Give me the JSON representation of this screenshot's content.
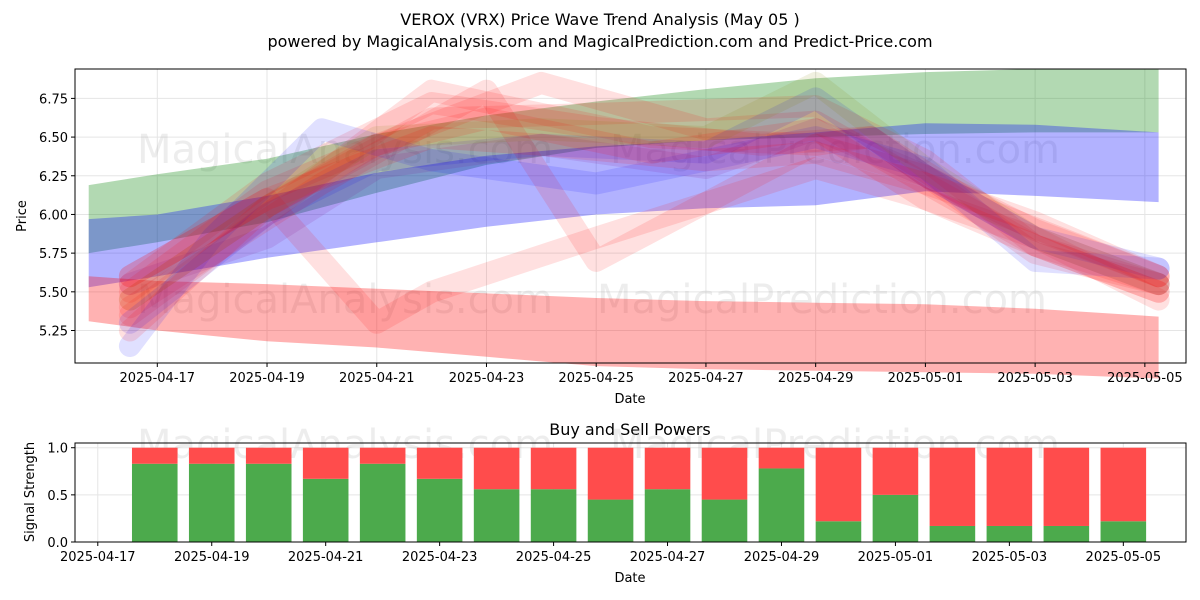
{
  "title": "VEROX (VRX) Price Wave Trend Analysis (May 05 )",
  "subtitle": "powered by MagicalAnalysis.com and MagicalPrediction.com and Predict-Price.com",
  "watermarks": [
    "MagicalAnalysis.com",
    "MagicalPrediction.com"
  ],
  "chart_data": [
    {
      "type": "area",
      "panel": "price",
      "xlabel": "Date",
      "ylabel": "Price",
      "xlim": [
        "2025-04-15T12:00",
        "2025-05-05T18:00"
      ],
      "ylim": [
        5.04,
        6.94
      ],
      "x_ticks": [
        "2025-04-17",
        "2025-04-19",
        "2025-04-21",
        "2025-04-23",
        "2025-04-25",
        "2025-04-27",
        "2025-04-29",
        "2025-05-01",
        "2025-05-03",
        "2025-05-05"
      ],
      "y_ticks": [
        5.25,
        5.5,
        5.75,
        6.0,
        6.25,
        6.5,
        6.75
      ],
      "grid": true,
      "bands": [
        {
          "color": "#008000",
          "opacity": 0.3,
          "x": [
            "2025-04-15T18:00",
            "2025-04-17",
            "2025-04-19",
            "2025-04-21",
            "2025-04-23",
            "2025-04-25",
            "2025-04-27",
            "2025-04-29",
            "2025-05-01",
            "2025-05-03",
            "2025-05-05T06:00"
          ],
          "upper": [
            6.19,
            6.26,
            6.36,
            6.52,
            6.64,
            6.73,
            6.81,
            6.88,
            6.92,
            6.94,
            6.94
          ],
          "lower": [
            5.75,
            5.82,
            5.95,
            6.14,
            6.32,
            6.43,
            6.48,
            6.5,
            6.52,
            6.53,
            6.53
          ]
        },
        {
          "color": "#0000ff",
          "opacity": 0.3,
          "x": [
            "2025-04-15T18:00",
            "2025-04-17",
            "2025-04-19",
            "2025-04-21",
            "2025-04-23",
            "2025-04-25",
            "2025-04-27",
            "2025-04-29",
            "2025-05-01",
            "2025-05-03",
            "2025-05-05T06:00"
          ],
          "upper": [
            5.97,
            6.0,
            6.12,
            6.27,
            6.38,
            6.44,
            6.48,
            6.53,
            6.59,
            6.58,
            6.53
          ],
          "lower": [
            5.53,
            5.6,
            5.72,
            5.82,
            5.92,
            6.0,
            6.04,
            6.06,
            6.15,
            6.12,
            6.08
          ]
        },
        {
          "color": "#ff0000",
          "opacity": 0.3,
          "x": [
            "2025-04-15T18:00",
            "2025-04-17",
            "2025-04-19",
            "2025-04-21",
            "2025-04-23",
            "2025-04-25",
            "2025-04-27",
            "2025-04-29",
            "2025-05-01",
            "2025-05-03",
            "2025-05-05T06:00"
          ],
          "upper": [
            5.6,
            5.57,
            5.55,
            5.52,
            5.49,
            5.46,
            5.44,
            5.43,
            5.42,
            5.39,
            5.34
          ],
          "lower": [
            5.31,
            5.25,
            5.18,
            5.14,
            5.08,
            5.02,
            5.0,
            4.99,
            4.98,
            4.97,
            4.94
          ]
        }
      ],
      "wave_paths": [
        {
          "color": "#ff0000",
          "opacity": 0.12,
          "x": [
            "2025-04-16T12:00",
            "2025-04-19",
            "2025-04-22",
            "2025-04-25",
            "2025-04-28",
            "2025-04-30",
            "2025-05-03",
            "2025-05-05T06:00"
          ],
          "y": [
            5.55,
            6.2,
            6.72,
            6.56,
            6.45,
            6.5,
            5.75,
            5.55
          ]
        },
        {
          "color": "#ff0000",
          "opacity": 0.12,
          "x": [
            "2025-04-16T12:00",
            "2025-04-19",
            "2025-04-22",
            "2025-04-25",
            "2025-04-29",
            "2025-05-01",
            "2025-05-03",
            "2025-05-05T06:00"
          ],
          "y": [
            5.45,
            6.05,
            6.62,
            6.65,
            6.7,
            6.35,
            5.8,
            5.5
          ]
        },
        {
          "color": "#ff0000",
          "opacity": 0.12,
          "x": [
            "2025-04-16T12:00",
            "2025-04-19",
            "2025-04-21",
            "2025-04-22",
            "2025-04-25",
            "2025-04-29",
            "2025-05-01",
            "2025-05-03",
            "2025-05-05T06:00"
          ],
          "y": [
            5.6,
            6.1,
            5.3,
            5.5,
            5.85,
            6.3,
            6.1,
            5.85,
            5.45
          ]
        },
        {
          "color": "#ff0000",
          "opacity": 0.12,
          "x": [
            "2025-04-16T12:00",
            "2025-04-20",
            "2025-04-23",
            "2025-04-25",
            "2025-04-29",
            "2025-05-01",
            "2025-05-03",
            "2025-05-05T06:00"
          ],
          "y": [
            5.4,
            6.2,
            6.8,
            5.7,
            6.45,
            6.25,
            5.9,
            5.6
          ]
        },
        {
          "color": "#ff0000",
          "opacity": 0.12,
          "x": [
            "2025-04-16T12:00",
            "2025-04-19",
            "2025-04-21",
            "2025-04-24",
            "2025-04-27",
            "2025-04-29",
            "2025-05-01",
            "2025-05-03",
            "2025-05-05T06:00"
          ],
          "y": [
            5.5,
            6.15,
            6.45,
            6.85,
            6.55,
            6.6,
            6.2,
            5.8,
            5.55
          ]
        },
        {
          "color": "#ff0000",
          "opacity": 0.12,
          "x": [
            "2025-04-16T12:00",
            "2025-04-19",
            "2025-04-22",
            "2025-04-26",
            "2025-04-29",
            "2025-04-30",
            "2025-05-02",
            "2025-05-05T06:00"
          ],
          "y": [
            5.35,
            6.0,
            6.8,
            6.5,
            6.45,
            6.5,
            6.05,
            5.6
          ]
        },
        {
          "color": "#0000ff",
          "opacity": 0.12,
          "x": [
            "2025-04-16T12:00",
            "2025-04-18",
            "2025-04-20",
            "2025-04-22",
            "2025-04-25",
            "2025-04-29",
            "2025-05-01",
            "2025-05-03",
            "2025-05-05T06:00"
          ],
          "y": [
            5.15,
            5.85,
            6.55,
            6.35,
            6.2,
            6.5,
            6.3,
            5.7,
            5.65
          ]
        },
        {
          "color": "#0000ff",
          "opacity": 0.12,
          "x": [
            "2025-04-16T12:00",
            "2025-04-19",
            "2025-04-21",
            "2025-04-24",
            "2025-04-27",
            "2025-04-29",
            "2025-05-01",
            "2025-05-03",
            "2025-05-05T06:00"
          ],
          "y": [
            5.3,
            6.0,
            6.35,
            6.45,
            6.4,
            6.75,
            6.25,
            5.85,
            5.65
          ]
        },
        {
          "color": "#800080",
          "opacity": 0.12,
          "x": [
            "2025-04-16T12:00",
            "2025-04-19",
            "2025-04-21",
            "2025-04-24",
            "2025-04-27",
            "2025-04-29",
            "2025-05-01",
            "2025-05-03",
            "2025-05-05T06:00"
          ],
          "y": [
            5.55,
            5.85,
            6.3,
            6.45,
            6.3,
            6.55,
            6.25,
            5.85,
            5.55
          ]
        },
        {
          "color": "#808000",
          "opacity": 0.12,
          "x": [
            "2025-04-16T12:00",
            "2025-04-19",
            "2025-04-21",
            "2025-04-24",
            "2025-04-27",
            "2025-04-29",
            "2025-05-01",
            "2025-05-03",
            "2025-05-05T06:00"
          ],
          "y": [
            5.45,
            6.05,
            6.5,
            6.55,
            6.5,
            6.85,
            6.3,
            5.85,
            5.55
          ]
        },
        {
          "color": "#ff0000",
          "opacity": 0.12,
          "x": [
            "2025-04-16T12:00",
            "2025-04-19",
            "2025-04-21",
            "2025-04-23",
            "2025-04-26",
            "2025-04-29",
            "2025-05-01",
            "2025-05-03",
            "2025-05-05T06:00"
          ],
          "y": [
            5.25,
            6.05,
            6.45,
            6.62,
            6.4,
            6.55,
            6.1,
            5.8,
            5.5
          ]
        },
        {
          "color": "#ff0000",
          "opacity": 0.12,
          "x": [
            "2025-04-16T12:00",
            "2025-04-19",
            "2025-04-22",
            "2025-04-24",
            "2025-04-27",
            "2025-04-29",
            "2025-05-01",
            "2025-05-03",
            "2025-05-05T06:00"
          ],
          "y": [
            5.6,
            6.1,
            6.5,
            6.45,
            6.35,
            6.4,
            6.2,
            5.95,
            5.6
          ]
        }
      ]
    },
    {
      "type": "bar",
      "panel": "signals",
      "title": "Buy and Sell Powers",
      "xlabel": "Date",
      "ylabel": "Signal Strength",
      "ylim": [
        0,
        1.05
      ],
      "y_ticks": [
        0.0,
        0.5,
        1.0
      ],
      "x_ticks": [
        "2025-04-17",
        "2025-04-19",
        "2025-04-21",
        "2025-04-23",
        "2025-04-25",
        "2025-04-27",
        "2025-04-29",
        "2025-05-01",
        "2025-05-03",
        "2025-05-05"
      ],
      "grid": true,
      "buy_color": "#4caa4c",
      "sell_color": "#ff4c4c",
      "categories": [
        "2025-04-18",
        "2025-04-19",
        "2025-04-20",
        "2025-04-21",
        "2025-04-22",
        "2025-04-23",
        "2025-04-24",
        "2025-04-25",
        "2025-04-26",
        "2025-04-27",
        "2025-04-28",
        "2025-04-29",
        "2025-04-30",
        "2025-05-01",
        "2025-05-02",
        "2025-05-03",
        "2025-05-04",
        "2025-05-05"
      ],
      "buy": [
        0.83,
        0.83,
        0.83,
        0.67,
        0.83,
        0.67,
        0.56,
        0.56,
        0.45,
        0.56,
        0.45,
        0.78,
        0.22,
        0.5,
        0.17,
        0.17,
        0.17,
        0.22
      ],
      "sell": [
        0.17,
        0.17,
        0.17,
        0.33,
        0.17,
        0.33,
        0.44,
        0.44,
        0.55,
        0.44,
        0.55,
        0.22,
        0.78,
        0.5,
        0.83,
        0.83,
        0.83,
        0.78
      ]
    }
  ]
}
